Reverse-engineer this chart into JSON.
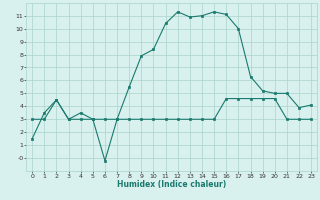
{
  "xlabel": "Humidex (Indice chaleur)",
  "x_values": [
    0,
    1,
    2,
    3,
    4,
    5,
    6,
    7,
    8,
    9,
    10,
    11,
    12,
    13,
    14,
    15,
    16,
    17,
    18,
    19,
    20,
    21,
    22,
    23
  ],
  "line1_y": [
    1.5,
    3.5,
    4.5,
    3.0,
    3.5,
    3.0,
    -0.2,
    3.0,
    5.5,
    7.9,
    8.4,
    10.4,
    11.3,
    10.9,
    11.0,
    11.3,
    11.1,
    10.0,
    6.3,
    5.2,
    5.0,
    5.0,
    3.9,
    4.1
  ],
  "line2_y": [
    3.0,
    3.0,
    4.5,
    3.0,
    3.0,
    3.0,
    3.0,
    3.0,
    3.0,
    3.0,
    3.0,
    3.0,
    3.0,
    3.0,
    3.0,
    3.0,
    4.6,
    4.6,
    4.6,
    4.6,
    4.6,
    3.0,
    3.0,
    3.0
  ],
  "line_color": "#1a7a6e",
  "bg_color": "#d8f0ee",
  "grid_color": "#aad4cc",
  "ylim": [
    -1,
    12
  ],
  "xlim": [
    -0.5,
    23.5
  ],
  "yticks": [
    0,
    1,
    2,
    3,
    4,
    5,
    6,
    7,
    8,
    9,
    10,
    11
  ],
  "xticks": [
    0,
    1,
    2,
    3,
    4,
    5,
    6,
    7,
    8,
    9,
    10,
    11,
    12,
    13,
    14,
    15,
    16,
    17,
    18,
    19,
    20,
    21,
    22,
    23
  ]
}
